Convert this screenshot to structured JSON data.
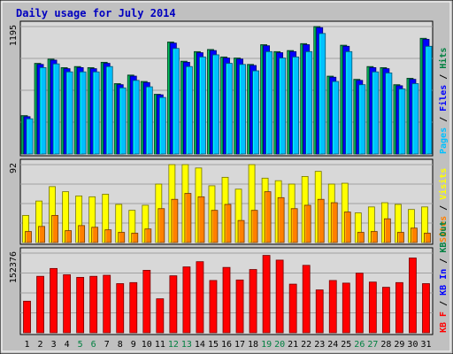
{
  "chart_data": {
    "type": "bar",
    "title": "Daily usage for July 2014",
    "days": [
      "1",
      "2",
      "3",
      "4",
      "5",
      "6",
      "7",
      "8",
      "9",
      "10",
      "11",
      "12",
      "13",
      "14",
      "15",
      "16",
      "17",
      "18",
      "19",
      "20",
      "21",
      "22",
      "23",
      "24",
      "25",
      "26",
      "27",
      "28",
      "29",
      "30",
      "31"
    ],
    "weekend_days": [
      "5",
      "6",
      "12",
      "13",
      "19",
      "20",
      "26",
      "27"
    ],
    "panels": [
      {
        "id": "hits",
        "ymax_label": "1195",
        "ymax": 1195,
        "side_labels": [
          {
            "text": "Pages",
            "color": "#00c0ff"
          },
          {
            "text": " / ",
            "color": "#000000"
          },
          {
            "text": "Files",
            "color": "#0000ff"
          },
          {
            "text": " / ",
            "color": "#000000"
          },
          {
            "text": "Hits",
            "color": "#008040"
          }
        ],
        "series": [
          {
            "name": "Hits",
            "color": "#008040",
            "values": [
              360,
              850,
              890,
              810,
              820,
              810,
              860,
              660,
              740,
              680,
              560,
              1050,
              870,
              960,
              980,
              910,
              900,
              840,
              1025,
              960,
              970,
              1035,
              1195,
              730,
              1020,
              700,
              820,
              810,
              650,
              710,
              1085
            ]
          },
          {
            "name": "Files",
            "color": "#0000ff",
            "values": [
              350,
              840,
              880,
              800,
              810,
              800,
              850,
              650,
              730,
              670,
              555,
              1040,
              860,
              950,
              970,
              900,
              890,
              830,
              1015,
              950,
              960,
              1025,
              1185,
              720,
              1010,
              690,
              810,
              800,
              640,
              700,
              1075
            ]
          },
          {
            "name": "Pages",
            "color": "#00c0ff",
            "values": [
              330,
              810,
              845,
              770,
              770,
              770,
              820,
              620,
              690,
              630,
              530,
              990,
              820,
              910,
              930,
              850,
              840,
              780,
              960,
              900,
              910,
              960,
              1130,
              680,
              960,
              650,
              770,
              760,
              610,
              660,
              1010
            ]
          }
        ]
      },
      {
        "id": "visits",
        "ymax_label": "92",
        "ymax": 92,
        "side_labels": [
          {
            "text": "Sites",
            "color": "#ff8000"
          },
          {
            "text": " / ",
            "color": "#000000"
          },
          {
            "text": "Visits",
            "color": "#ffff00"
          }
        ],
        "series": [
          {
            "name": "Visits",
            "color": "#ffff00",
            "values": [
              32,
              49,
              66,
              60,
              55,
              54,
              57,
              45,
              38,
              44,
              69,
              92,
              92,
              88,
              67,
              77,
              63,
              92,
              76,
              73,
              69,
              78,
              84,
              69,
              70,
              35,
              42,
              47,
              45,
              39,
              42
            ]
          },
          {
            "name": "Sites",
            "color": "#ff8000",
            "values": [
              13,
              19,
              32,
              14,
              20,
              18,
              15,
              12,
              11,
              16,
              40,
              51,
              58,
              54,
              38,
              45,
              26,
              38,
              60,
              53,
              40,
              44,
              51,
              47,
              36,
              12,
              13,
              28,
              12,
              17,
              11
            ]
          }
        ]
      },
      {
        "id": "kbytes",
        "ymax_label": "152376",
        "ymax": 152376,
        "side_labels": [
          {
            "text": "KB F",
            "color": "#ff0000"
          },
          {
            "text": " / ",
            "color": "#000000"
          },
          {
            "text": "KB In",
            "color": "#0000ff"
          },
          {
            "text": " / ",
            "color": "#000000"
          },
          {
            "text": "KB Out",
            "color": "#008040"
          }
        ],
        "series": [
          {
            "name": "KB F",
            "color": "#ff0000",
            "values": [
              60400,
              108000,
              123000,
              111000,
              106000,
              108000,
              110000,
              94000,
              96000,
              119500,
              65000,
              109000,
              126000,
              136000,
              100000,
              125000,
              101000,
              121000,
              148000,
              139000,
              93000,
              129000,
              82000,
              100000,
              95000,
              114000,
              97000,
              87000,
              96000,
              143000,
              94000
            ]
          }
        ]
      }
    ]
  },
  "colors": {
    "background": "#c0c0c0",
    "plot_background": "#d8d8d8",
    "title": "#0000c0",
    "weekend_day": "#008040",
    "weekday": "#000000"
  }
}
